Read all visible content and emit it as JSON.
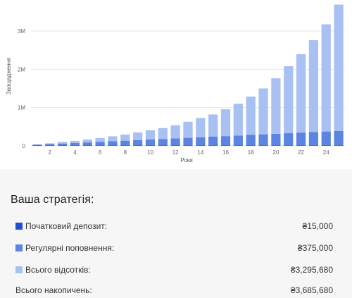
{
  "colors": {
    "initial": "#1f4fd1",
    "contributions": "#5b84e3",
    "interest": "#a8c0f2",
    "grid": "#e6e6e6"
  },
  "chart_data": {
    "type": "bar",
    "stacked": true,
    "xlabel": "Роки",
    "ylabel": "Заощадження",
    "ylim": [
      0,
      3700000
    ],
    "x": [
      1,
      2,
      3,
      4,
      5,
      6,
      7,
      8,
      9,
      10,
      11,
      12,
      13,
      14,
      15,
      16,
      17,
      18,
      19,
      20,
      21,
      22,
      23,
      24,
      25
    ],
    "x_tick_labels": [
      "2",
      "4",
      "6",
      "8",
      "10",
      "12",
      "14",
      "16",
      "18",
      "20",
      "22",
      "24"
    ],
    "y_ticks": [
      {
        "value": 0,
        "label": "0"
      },
      {
        "value": 1000000,
        "label": "1M"
      },
      {
        "value": 2000000,
        "label": "2M"
      },
      {
        "value": 3000000,
        "label": "3M"
      }
    ],
    "grid": true,
    "series": [
      {
        "name": "Початковий депозит",
        "color_key": "initial",
        "values": [
          15000,
          15000,
          15000,
          15000,
          15000,
          15000,
          15000,
          15000,
          15000,
          15000,
          15000,
          15000,
          15000,
          15000,
          15000,
          15000,
          15000,
          15000,
          15000,
          15000,
          15000,
          15000,
          15000,
          15000,
          15000
        ]
      },
      {
        "name": "Регулярні поповнення",
        "color_key": "contributions",
        "values": [
          15000,
          30000,
          45000,
          60000,
          75000,
          90000,
          105000,
          120000,
          135000,
          150000,
          165000,
          180000,
          195000,
          210000,
          225000,
          240000,
          255000,
          270000,
          285000,
          300000,
          315000,
          330000,
          345000,
          360000,
          375000
        ]
      },
      {
        "name": "Всього відсотків",
        "color_key": "interest",
        "values": [
          10000,
          20000,
          40000,
          55000,
          75000,
          100000,
          130000,
          160000,
          200000,
          240000,
          285000,
          340000,
          420000,
          500000,
          580000,
          700000,
          830000,
          1000000,
          1200000,
          1450000,
          1750000,
          2050000,
          2400000,
          2800000,
          3300000
        ]
      }
    ]
  },
  "summary": {
    "title": "Ваша стратегія:",
    "rows": [
      {
        "label": "Початковий депозит:",
        "value": "₴15,000",
        "color_key": "initial"
      },
      {
        "label": "Регулярні поповнення:",
        "value": "₴375,000",
        "color_key": "contributions"
      },
      {
        "label": "Всього відсотків:",
        "value": "₴3,295,680",
        "color_key": "interest"
      }
    ],
    "total": {
      "label": "Всього накопичень:",
      "value": "₴3,685,680"
    }
  }
}
